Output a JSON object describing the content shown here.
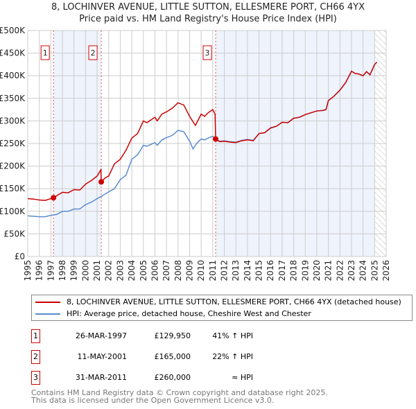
{
  "chart_data": {
    "type": "line",
    "title": "8, LOCHINVER AVENUE, LITTLE SUTTON, ELLESMERE PORT, CH66 4YX",
    "subtitle": "Price paid vs. HM Land Registry's House Price Index (HPI)",
    "xlim": [
      1995,
      2026
    ],
    "ylim": [
      0,
      500000
    ],
    "yticks": [
      0,
      50000,
      100000,
      150000,
      200000,
      250000,
      300000,
      350000,
      400000,
      450000,
      500000
    ],
    "ytick_labels": [
      "£0",
      "£50K",
      "£100K",
      "£150K",
      "£200K",
      "£250K",
      "£300K",
      "£350K",
      "£400K",
      "£450K",
      "£500K"
    ],
    "xticks": [
      1995,
      1996,
      1997,
      1998,
      1999,
      2000,
      2001,
      2002,
      2003,
      2004,
      2005,
      2006,
      2007,
      2008,
      2009,
      2010,
      2011,
      2012,
      2013,
      2014,
      2015,
      2016,
      2017,
      2018,
      2019,
      2020,
      2021,
      2022,
      2023,
      2024,
      2025,
      2026
    ],
    "grid": true,
    "series": [
      {
        "name": "8, LOCHINVER AVENUE, LITTLE SUTTON, ELLESMERE PORT, CH66 4YX (detached house)",
        "color": "#cc0000",
        "x": [
          1995,
          1995.5,
          1996,
          1996.5,
          1997,
          1997.23,
          1997.6,
          1998,
          1998.5,
          1999,
          1999.5,
          2000,
          2000.5,
          2001,
          2001.33,
          2001.36,
          2001.7,
          2002,
          2002.5,
          2003,
          2003.5,
          2004,
          2004.5,
          2005,
          2005.3,
          2006,
          2006.2,
          2006.6,
          2007,
          2007.5,
          2008,
          2008.5,
          2009,
          2009.5,
          2009.7,
          2010,
          2010.3,
          2010.6,
          2011,
          2011.2,
          2011.25,
          2011.6,
          2012,
          2012.5,
          2013,
          2013.5,
          2014,
          2014.5,
          2015,
          2015.5,
          2016,
          2016.5,
          2017,
          2017.5,
          2018,
          2018.5,
          2019,
          2019.5,
          2020,
          2020.5,
          2020.8,
          2021,
          2021.5,
          2022,
          2022.5,
          2023,
          2023.3,
          2023.6,
          2024,
          2024.3,
          2024.6,
          2025,
          2025.2
        ],
        "y": [
          128000,
          127000,
          125000,
          124000,
          128000,
          129950,
          136000,
          142000,
          141000,
          148000,
          147000,
          160000,
          168000,
          178000,
          192000,
          165000,
          174000,
          178000,
          205000,
          215000,
          235000,
          262000,
          272000,
          300000,
          296000,
          308000,
          300000,
          315000,
          320000,
          328000,
          340000,
          335000,
          310000,
          290000,
          300000,
          315000,
          310000,
          318000,
          325000,
          315000,
          260000,
          254000,
          255000,
          253000,
          252000,
          256000,
          258000,
          256000,
          272000,
          274000,
          284000,
          288000,
          297000,
          296000,
          306000,
          308000,
          314000,
          318000,
          322000,
          323000,
          325000,
          345000,
          355000,
          368000,
          385000,
          410000,
          405000,
          404000,
          400000,
          409000,
          402000,
          425000,
          430000
        ]
      },
      {
        "name": "HPI: Average price, detached house, Cheshire West and Chester",
        "color": "#5b8bd0",
        "x": [
          1995,
          1995.5,
          1996,
          1996.5,
          1997,
          1997.5,
          1998,
          1998.5,
          1999,
          1999.5,
          2000,
          2000.5,
          2001,
          2001.5,
          2002,
          2002.5,
          2003,
          2003.5,
          2004,
          2004.5,
          2005,
          2005.3,
          2006,
          2006.2,
          2006.6,
          2007,
          2007.5,
          2008,
          2008.5,
          2009,
          2009.3,
          2009.6,
          2010,
          2010.3,
          2010.6,
          2011,
          2011.25,
          2011.6,
          2012,
          2012.5,
          2013,
          2013.5,
          2014,
          2014.5,
          2015,
          2015.5,
          2016,
          2016.5,
          2017,
          2017.5,
          2018,
          2018.5,
          2019,
          2019.5,
          2020,
          2020.5,
          2020.8,
          2021,
          2021.5,
          2022,
          2022.5,
          2023,
          2023.3,
          2023.6,
          2024,
          2024.3,
          2024.6,
          2025,
          2025.2
        ],
        "y": [
          90000,
          89000,
          88000,
          88000,
          91000,
          93000,
          100000,
          100000,
          105000,
          105000,
          115000,
          120000,
          128000,
          135000,
          143000,
          150000,
          170000,
          180000,
          215000,
          225000,
          246000,
          244000,
          252000,
          246000,
          258000,
          263000,
          268000,
          279000,
          276000,
          255000,
          238000,
          250000,
          260000,
          258000,
          262000,
          266000,
          260000,
          255000,
          256000,
          254000,
          253000,
          257000,
          259000,
          257000,
          272000,
          274000,
          285000,
          288000,
          297000,
          296000,
          306000,
          308000,
          314000,
          318000,
          322000,
          323000,
          325000,
          345000,
          355000,
          368000,
          385000,
          410000,
          405000,
          404000,
          400000,
          409000,
          402000,
          425000,
          430000
        ]
      }
    ],
    "sales": [
      {
        "label": "1",
        "x": 1997.23,
        "price": 129950,
        "date": "26-MAR-1997",
        "price_text": "£129,950",
        "hpi_text": "41% ↑ HPI"
      },
      {
        "label": "2",
        "x": 2001.36,
        "price": 165000,
        "date": "11-MAY-2001",
        "price_text": "£165,000",
        "hpi_text": "22% ↑ HPI"
      },
      {
        "label": "3",
        "x": 2011.25,
        "price": 260000,
        "date": "31-MAR-2011",
        "price_text": "£260,000",
        "hpi_text": "≈ HPI"
      }
    ],
    "shaded_ranges": [
      [
        1997.23,
        2001.36
      ],
      [
        2011.25,
        2025.0
      ]
    ],
    "hatched_from": 2025.0,
    "legend_position": "bottom"
  },
  "footer": {
    "line1": "Contains HM Land Registry data © Crown copyright and database right 2025.",
    "line2": "This data is licensed under the Open Government Licence v3.0."
  }
}
